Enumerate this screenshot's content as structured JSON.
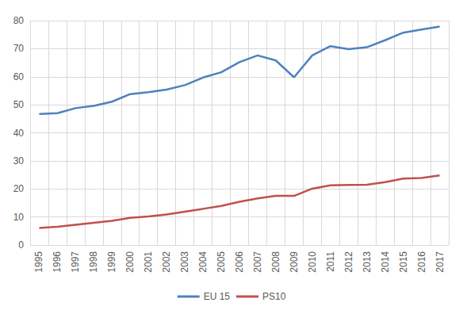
{
  "chart_data": {
    "type": "line",
    "categories": [
      "1995",
      "1996",
      "1997",
      "1998",
      "1999",
      "2000",
      "2001",
      "2002",
      "2003",
      "2004",
      "2005",
      "2006",
      "2007",
      "2008",
      "2009",
      "2010",
      "2011",
      "2012",
      "2013",
      "2014",
      "2015",
      "2016",
      "2017"
    ],
    "series": [
      {
        "name": "EU 15",
        "color": "#4f81bd",
        "values": [
          46.7,
          47.0,
          48.8,
          49.6,
          51.1,
          53.8,
          54.5,
          55.4,
          57.0,
          59.7,
          61.6,
          65.2,
          67.6,
          65.8,
          59.8,
          67.6,
          70.9,
          69.8,
          70.5,
          73.0,
          75.7,
          76.8,
          77.9
        ]
      },
      {
        "name": "PS10",
        "color": "#c0504d",
        "values": [
          6.1,
          6.5,
          7.2,
          7.9,
          8.6,
          9.7,
          10.2,
          10.9,
          11.9,
          12.9,
          13.9,
          15.4,
          16.6,
          17.5,
          17.5,
          20.1,
          21.3,
          21.4,
          21.5,
          22.4,
          23.7,
          23.9,
          24.8
        ]
      }
    ],
    "ylim": [
      0,
      80
    ],
    "yticks": [
      0,
      10,
      20,
      30,
      40,
      50,
      60,
      70,
      80
    ],
    "grid": true,
    "legend": "bottom",
    "marker": "none",
    "line_style": "solid"
  }
}
